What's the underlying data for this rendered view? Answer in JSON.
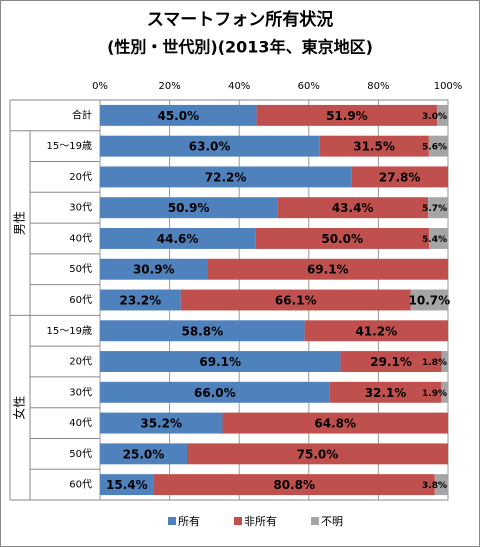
{
  "chart_data": {
    "type": "stacked-bar-horizontal",
    "title": [
      "スマートフォン所有状況",
      "(性別・世代別)(2013年、東京地区)"
    ],
    "categories": [
      "合計",
      "15～19歳",
      "20代",
      "30代",
      "40代",
      "50代",
      "60代",
      "15～19歳",
      "20代",
      "30代",
      "40代",
      "50代",
      "60代"
    ],
    "group_labels": [
      "男性",
      "女性"
    ],
    "series": [
      {
        "name": "所有",
        "color": "#4f81bd",
        "values": [
          45.0,
          63.0,
          72.2,
          50.9,
          44.6,
          30.9,
          23.2,
          58.8,
          69.1,
          66.0,
          35.2,
          25.0,
          15.4
        ],
        "value_labels": [
          "45.0%",
          "63.0%",
          "72.2%",
          "50.9%",
          "44.6%",
          "30.9%",
          "23.2%",
          "58.8%",
          "69.1%",
          "66.0%",
          "35.2%",
          "25.0%",
          "15.4%"
        ]
      },
      {
        "name": "非所有",
        "color": "#c0504d",
        "values": [
          51.9,
          31.5,
          27.8,
          43.4,
          50.0,
          69.1,
          66.1,
          41.2,
          29.1,
          32.1,
          64.8,
          75.0,
          80.8
        ],
        "value_labels": [
          "51.9%",
          "31.5%",
          "27.8%",
          "43.4%",
          "50.0%",
          "69.1%",
          "66.1%",
          "41.2%",
          "29.1%",
          "32.1%",
          "64.8%",
          "75.0%",
          "80.8%"
        ]
      },
      {
        "name": "不明",
        "color": "#a5a5a5",
        "values": [
          3.0,
          5.6,
          0,
          5.7,
          5.4,
          0,
          10.7,
          0,
          1.8,
          1.9,
          0,
          0,
          3.8
        ],
        "value_labels": [
          "3.0%",
          "5.6%",
          null,
          "5.7%",
          "5.4%",
          null,
          "10.7%",
          null,
          "1.8%",
          "1.9%",
          null,
          null,
          "3.8%"
        ]
      }
    ],
    "xlim": [
      0,
      100
    ],
    "xticks": [
      {
        "value": 0,
        "label": "0%"
      },
      {
        "value": 20,
        "label": "20%"
      },
      {
        "value": 40,
        "label": "40%"
      },
      {
        "value": 60,
        "label": "60%"
      },
      {
        "value": 80,
        "label": "80%"
      },
      {
        "value": 100,
        "label": "100%"
      }
    ],
    "grid": true
  }
}
